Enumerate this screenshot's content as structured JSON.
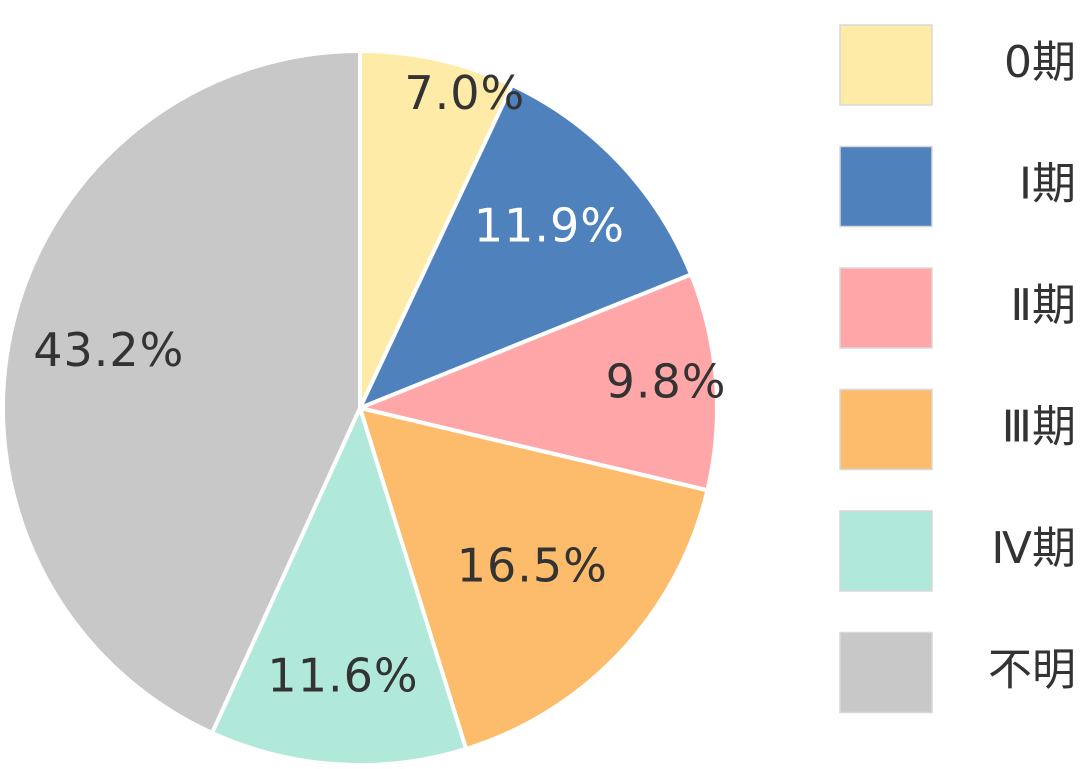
{
  "chart_data": {
    "type": "pie",
    "start_angle_deg": 0,
    "direction": "clockwise",
    "legend_position": "right",
    "slices": [
      {
        "label": "0期",
        "value": 7.0,
        "value_label": "7.0%",
        "color": "#FEEBA8",
        "label_color": "#333333"
      },
      {
        "label": "Ⅰ期",
        "value": 11.9,
        "value_label": "11.9%",
        "color": "#4F81BD",
        "label_color": "#ffffff"
      },
      {
        "label": "Ⅱ期",
        "value": 9.8,
        "value_label": "9.8%",
        "color": "#FFA7A8",
        "label_color": "#333333"
      },
      {
        "label": "Ⅲ期",
        "value": 16.5,
        "value_label": "16.5%",
        "color": "#FDBC6B",
        "label_color": "#333333"
      },
      {
        "label": "Ⅳ期",
        "value": 11.6,
        "value_label": "11.6%",
        "color": "#B0E8D9",
        "label_color": "#333333"
      },
      {
        "label": "不明",
        "value": 43.2,
        "value_label": "43.2%",
        "color": "#C8C8C8",
        "label_color": "#333333"
      }
    ]
  }
}
